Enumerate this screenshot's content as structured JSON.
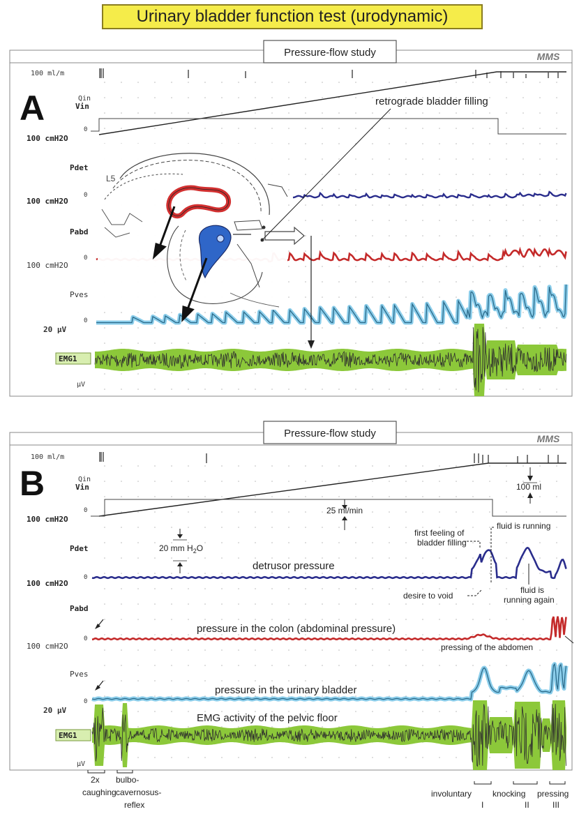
{
  "title": "Urinary bladder function test (urodynamic)",
  "colors": {
    "pdet": "#2a2d8c",
    "pabd": "#c42a2a",
    "pves_line": "#2a6a8a",
    "pves_glow": "#7ec8e8",
    "emg_glow": "#8cc83a",
    "emg_core": "#2e2e2e",
    "banner": "#f5ec4a",
    "anatomy_red": "#d23030",
    "anatomy_blue": "#2f66c8"
  },
  "panels": [
    {
      "letter": "A",
      "header": "Pressure-flow study",
      "logo": "MMS",
      "channel_labels": {
        "scale_flow": "100 ml/m",
        "qin": "Qin",
        "vin": "Vin",
        "scale_pdet": "100 cmH2O",
        "pdet": "Pdet",
        "scale_pabd": "100 cmH2O",
        "pabd": "Pabd",
        "scale_pves": "100 cmH2O",
        "pves": "Pves",
        "scale_emg": "20 µV",
        "emg": "EMG1",
        "emg_unit": "µV",
        "zero": "0"
      },
      "anatomy_labels": {
        "vertebra": "L5"
      },
      "annotations": [
        {
          "id": "retrograde",
          "text": "retrograde bladder filling"
        }
      ]
    },
    {
      "letter": "B",
      "header": "Pressure-flow study",
      "logo": "MMS",
      "channel_labels": {
        "scale_flow": "100 ml/m",
        "qin": "Qin",
        "vin": "Vin",
        "scale_pdet": "100 cmH2O",
        "pdet": "Pdet",
        "scale_pabd": "100 cmH2O",
        "pabd": "Pabd",
        "scale_pves": "100 cmH2O",
        "pves": "Pves",
        "scale_emg": "20 µV",
        "emg": "EMG1",
        "emg_unit": "µV",
        "zero": "0"
      },
      "annotations": [
        {
          "id": "ml100",
          "text": "100 ml"
        },
        {
          "id": "rate",
          "text": "25 ml/min"
        },
        {
          "id": "mmh2o_a",
          "text": "20 mm H"
        },
        {
          "id": "mmh2o_sub",
          "text": "2"
        },
        {
          "id": "mmh2o_b",
          "text": "O"
        },
        {
          "id": "first_feeling_1",
          "text": "first feeling of"
        },
        {
          "id": "first_feeling_2",
          "text": "bladder filling"
        },
        {
          "id": "fluid_running",
          "text": "fluid is running"
        },
        {
          "id": "detrusor",
          "text": "detrusor pressure"
        },
        {
          "id": "desire",
          "text": "desire to void"
        },
        {
          "id": "running_again_1",
          "text": "fluid is"
        },
        {
          "id": "running_again_2",
          "text": "running again"
        },
        {
          "id": "colon",
          "text": "pressure in the colon (abdominal pressure)"
        },
        {
          "id": "pressing_abd",
          "text": "pressing of the abdomen"
        },
        {
          "id": "bladder_p",
          "text": "pressure in the urinary bladder"
        },
        {
          "id": "emg_pelvic",
          "text": "EMG activity of the pelvic floor"
        },
        {
          "id": "cough_1",
          "text": "2x"
        },
        {
          "id": "cough_2",
          "text": "caughing"
        },
        {
          "id": "bulbo_1",
          "text": "bulbo-"
        },
        {
          "id": "bulbo_2",
          "text": "cavernosus-"
        },
        {
          "id": "bulbo_3",
          "text": "reflex"
        },
        {
          "id": "involuntary",
          "text": "involuntary"
        },
        {
          "id": "knocking",
          "text": "knocking"
        },
        {
          "id": "pressing",
          "text": "pressing"
        },
        {
          "id": "roman_1",
          "text": "I"
        },
        {
          "id": "roman_2",
          "text": "II"
        },
        {
          "id": "roman_3",
          "text": "III"
        }
      ]
    }
  ]
}
